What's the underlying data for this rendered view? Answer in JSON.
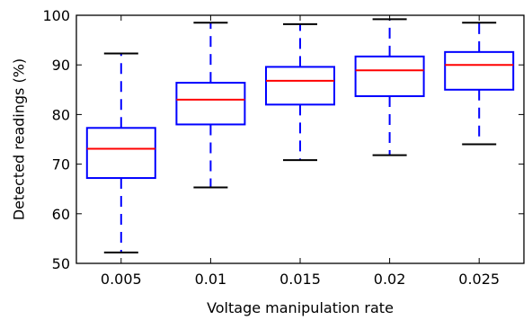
{
  "chart_data": {
    "type": "box",
    "title": "",
    "xlabel": "Voltage manipulation rate",
    "ylabel": "Detected readings (%)",
    "ylim": [
      50,
      100
    ],
    "yticks": [
      "50",
      "60",
      "70",
      "80",
      "90",
      "100"
    ],
    "grid": false,
    "categories": [
      "0.005",
      "0.01",
      "0.015",
      "0.02",
      "0.025"
    ],
    "boxes": [
      {
        "whisker_low": 52.2,
        "q1": 67.2,
        "median": 73.1,
        "q3": 77.3,
        "whisker_high": 92.3
      },
      {
        "whisker_low": 65.3,
        "q1": 78.0,
        "median": 83.0,
        "q3": 86.4,
        "whisker_high": 98.5
      },
      {
        "whisker_low": 70.8,
        "q1": 82.0,
        "median": 86.8,
        "q3": 89.6,
        "whisker_high": 98.2
      },
      {
        "whisker_low": 71.8,
        "q1": 83.7,
        "median": 88.9,
        "q3": 91.7,
        "whisker_high": 99.2
      },
      {
        "whisker_low": 74.0,
        "q1": 85.0,
        "median": 90.0,
        "q3": 92.6,
        "whisker_high": 98.5
      }
    ],
    "colors": {
      "box": "#0000ff",
      "whisker": "#0000ff",
      "median": "#ff0000",
      "cap": "#000000",
      "axes": "#000000"
    }
  }
}
